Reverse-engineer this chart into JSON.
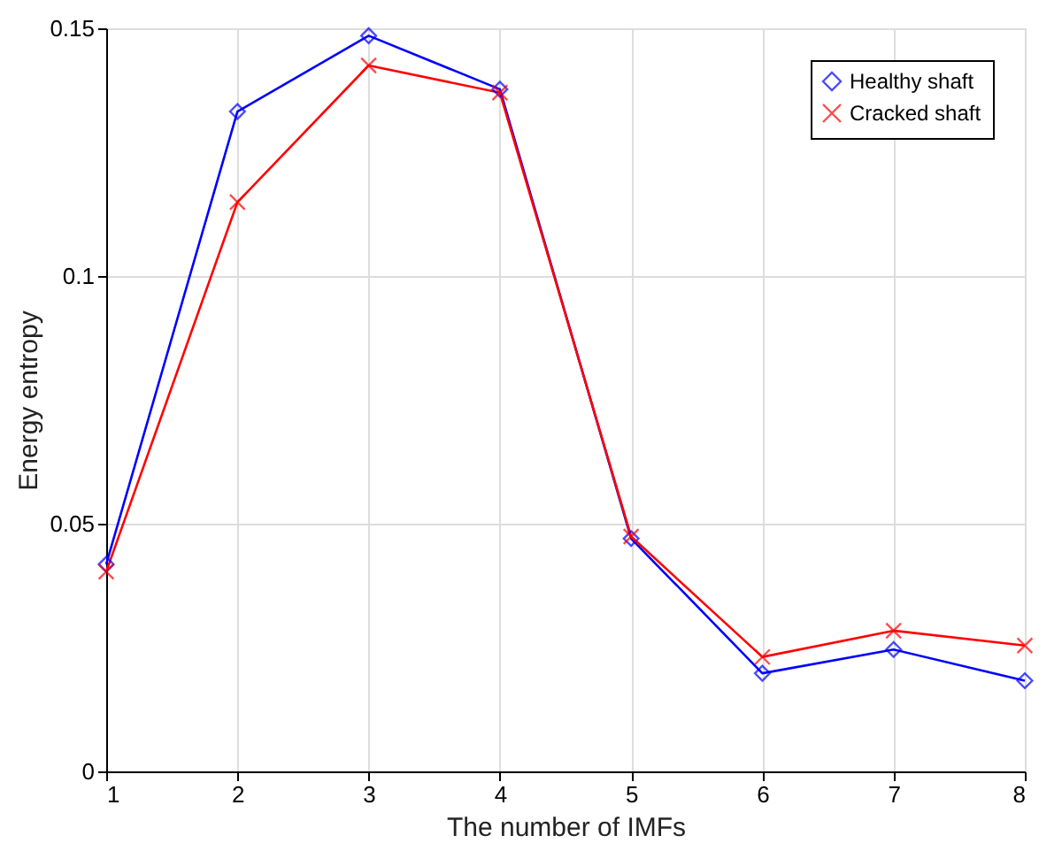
{
  "chart_data": {
    "type": "line",
    "xlabel": "The number of IMFs",
    "ylabel": "Energy entropy",
    "x": [
      1,
      2,
      3,
      4,
      5,
      6,
      7,
      8
    ],
    "series": [
      {
        "name": "Healthy shaft",
        "color": "#0000ff",
        "marker": "diamond",
        "values": [
          0.0418,
          0.1332,
          0.1485,
          0.1377,
          0.047,
          0.0198,
          0.0246,
          0.0183
        ]
      },
      {
        "name": "Cracked shaft",
        "color": "#ff0000",
        "marker": "cross",
        "values": [
          0.0403,
          0.1149,
          0.1425,
          0.137,
          0.0474,
          0.0231,
          0.0284,
          0.0254
        ]
      }
    ],
    "xlim": [
      1,
      8
    ],
    "xticks": [
      1,
      2,
      3,
      4,
      5,
      6,
      7,
      8
    ],
    "ylim": [
      0,
      0.15
    ],
    "yticks": [
      0,
      0.05,
      0.1,
      0.15
    ],
    "grid": true,
    "legend": "top right",
    "line_style": "solid"
  }
}
